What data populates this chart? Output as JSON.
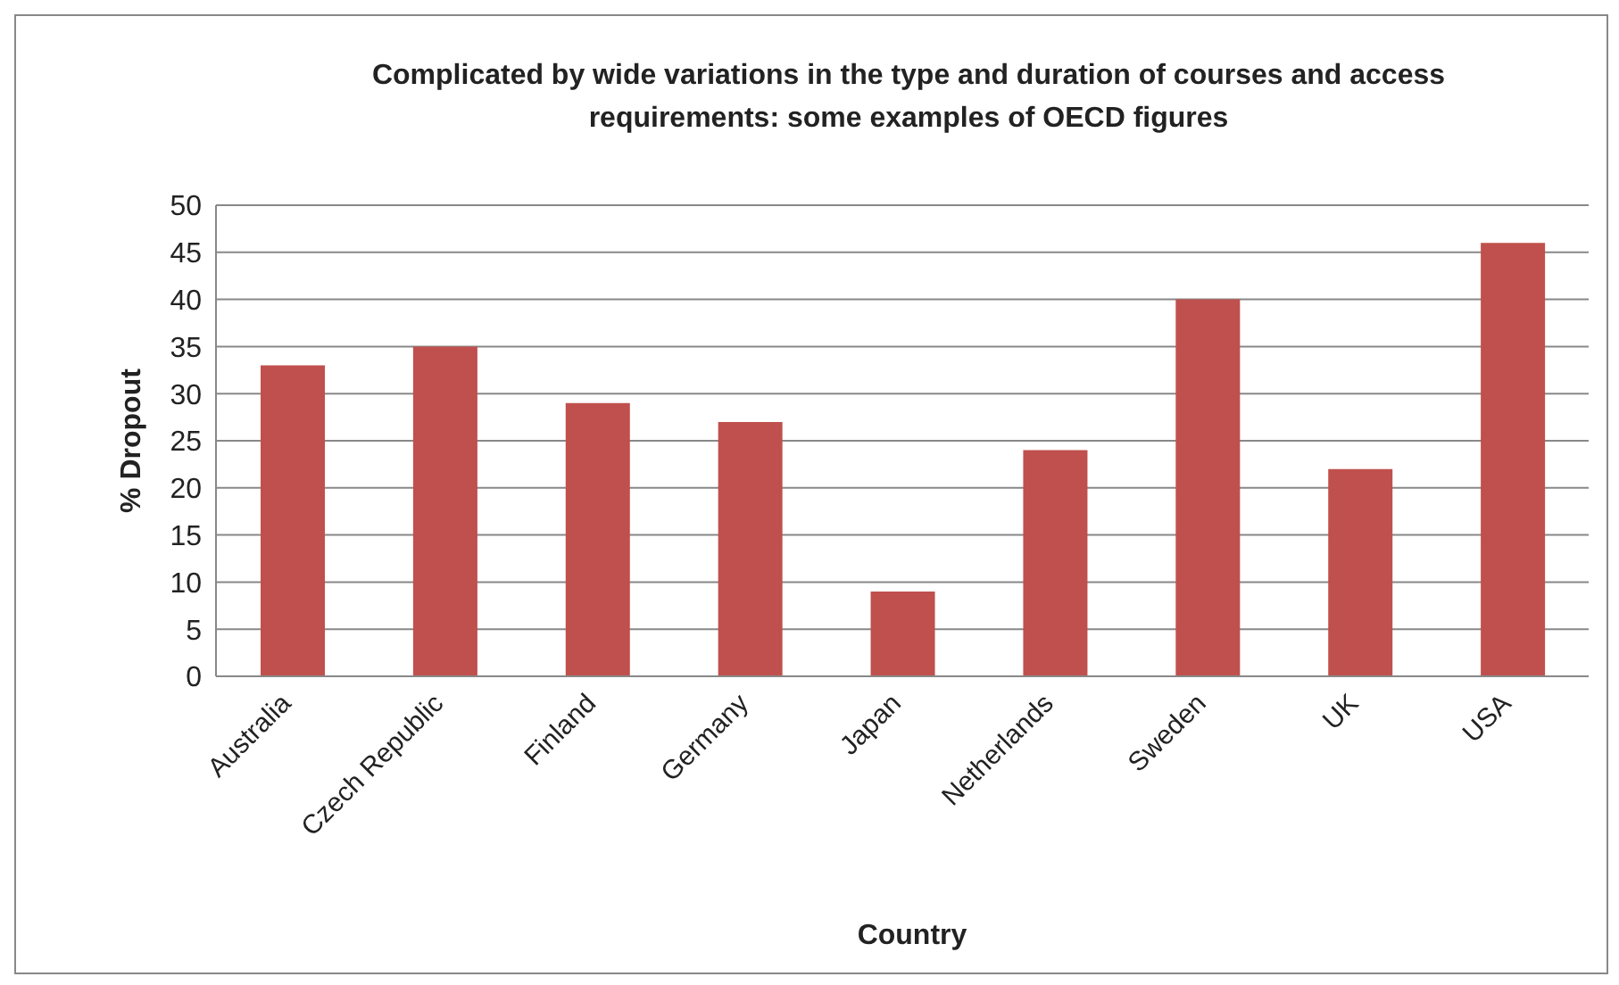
{
  "chart_data": {
    "type": "bar",
    "title": "Complicated by wide variations in the type and duration of courses and access requirements: some examples of OECD figures",
    "xlabel": "Country",
    "ylabel": "% Dropout",
    "categories": [
      "Australia",
      "Czech Republic",
      "Finland",
      "Germany",
      "Japan",
      "Netherlands",
      "Sweden",
      "UK",
      "USA"
    ],
    "values": [
      33,
      35,
      29,
      27,
      9,
      24,
      40,
      22,
      46
    ],
    "color": "#c0504d",
    "ylim": [
      0,
      50
    ],
    "yticks": [
      0,
      5,
      10,
      15,
      20,
      25,
      30,
      35,
      40,
      45,
      50
    ],
    "grid": "y"
  }
}
